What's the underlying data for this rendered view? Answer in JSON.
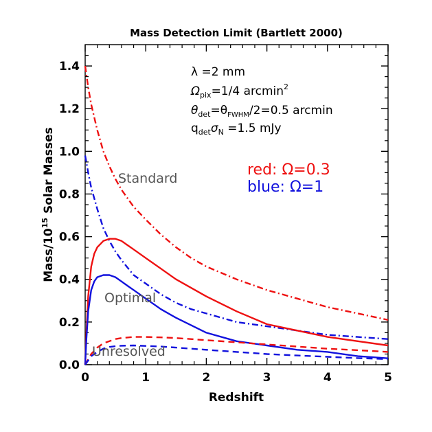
{
  "chart_data": {
    "type": "line",
    "title": "Mass Detection Limit (Bartlett 2000)",
    "xlabel": "Redshift",
    "ylabel": "Mass/10^15 Solar Masses",
    "xlim": [
      0,
      5
    ],
    "ylim": [
      0,
      1.5
    ],
    "x_ticks": [
      "0",
      "1",
      "2",
      "3",
      "4",
      "5"
    ],
    "y_ticks": [
      "0.0",
      "0.2",
      "0.4",
      "0.6",
      "0.8",
      "1.0",
      "1.2",
      "1.4"
    ],
    "grid": false,
    "parameters": {
      "lambda": "λ =2 mm",
      "omega_pix": "Ω",
      "omega_pix_sub": "pix",
      "omega_pix_val": "=1/4 arcmin",
      "omega_pix_sup": "2",
      "theta_1": "θ",
      "theta_1_sub": "det",
      "theta_2": "=θ",
      "theta_2_sub": "FWHM",
      "theta_rest": "/2=0.5 arcmin",
      "q": "q",
      "q_sub": "det",
      "sigma": "σ",
      "sigma_sub": "N",
      "q_rest": " =1.5 mJy"
    },
    "legend": {
      "red": "red:  Ω=0.3",
      "blue": "blue: Ω=1"
    },
    "annotations": {
      "standard": "Standard",
      "optimal": "Optimal",
      "unresolved": "Unresolved"
    },
    "colors": {
      "red": "#ee1111",
      "blue": "#1111dd"
    },
    "series": [
      {
        "key": "standard-red",
        "color": "red",
        "style": "dashdot",
        "x": [
          0.0,
          0.05,
          0.1,
          0.2,
          0.3,
          0.4,
          0.5,
          0.6,
          0.8,
          1.0,
          1.25,
          1.5,
          1.75,
          2.0,
          2.5,
          3.0,
          3.5,
          4.0,
          4.5,
          5.0
        ],
        "y": [
          1.4,
          1.3,
          1.22,
          1.1,
          1.0,
          0.93,
          0.87,
          0.82,
          0.74,
          0.68,
          0.61,
          0.55,
          0.5,
          0.46,
          0.4,
          0.35,
          0.31,
          0.27,
          0.24,
          0.21
        ]
      },
      {
        "key": "standard-blue",
        "color": "blue",
        "style": "dashdot",
        "x": [
          0.0,
          0.05,
          0.1,
          0.2,
          0.3,
          0.4,
          0.5,
          0.6,
          0.8,
          1.0,
          1.25,
          1.5,
          1.75,
          2.0,
          2.5,
          3.0,
          3.5,
          4.0,
          4.5,
          5.0
        ],
        "y": [
          0.98,
          0.9,
          0.83,
          0.73,
          0.64,
          0.58,
          0.53,
          0.49,
          0.42,
          0.38,
          0.33,
          0.29,
          0.26,
          0.24,
          0.2,
          0.18,
          0.16,
          0.14,
          0.13,
          0.12
        ]
      },
      {
        "key": "optimal-red",
        "color": "red",
        "style": "solid",
        "x": [
          0.0,
          0.02,
          0.05,
          0.1,
          0.15,
          0.2,
          0.3,
          0.4,
          0.5,
          0.6,
          0.7,
          0.8,
          1.0,
          1.25,
          1.5,
          2.0,
          2.5,
          3.0,
          3.5,
          4.0,
          4.5,
          5.0
        ],
        "y": [
          0.0,
          0.15,
          0.32,
          0.46,
          0.52,
          0.55,
          0.58,
          0.59,
          0.59,
          0.58,
          0.56,
          0.54,
          0.5,
          0.45,
          0.4,
          0.32,
          0.25,
          0.19,
          0.16,
          0.13,
          0.11,
          0.09
        ]
      },
      {
        "key": "optimal-blue",
        "color": "blue",
        "style": "solid",
        "x": [
          0.0,
          0.02,
          0.05,
          0.1,
          0.15,
          0.2,
          0.3,
          0.4,
          0.5,
          0.6,
          0.7,
          0.8,
          1.0,
          1.25,
          1.5,
          2.0,
          2.5,
          3.0,
          3.5,
          4.0,
          4.5,
          5.0
        ],
        "y": [
          0.0,
          0.12,
          0.25,
          0.35,
          0.39,
          0.41,
          0.42,
          0.42,
          0.41,
          0.39,
          0.37,
          0.35,
          0.31,
          0.26,
          0.22,
          0.15,
          0.11,
          0.09,
          0.07,
          0.06,
          0.04,
          0.03
        ]
      },
      {
        "key": "unresolved-red",
        "color": "red",
        "style": "dashed",
        "x": [
          0.0,
          0.1,
          0.2,
          0.3,
          0.4,
          0.5,
          0.6,
          0.8,
          1.0,
          1.25,
          1.5,
          2.0,
          2.5,
          3.0,
          3.5,
          4.0,
          4.5,
          5.0
        ],
        "y": [
          0.0,
          0.05,
          0.08,
          0.1,
          0.11,
          0.12,
          0.125,
          0.13,
          0.13,
          0.128,
          0.125,
          0.115,
          0.105,
          0.095,
          0.085,
          0.075,
          0.068,
          0.06
        ]
      },
      {
        "key": "unresolved-blue",
        "color": "blue",
        "style": "dashed",
        "x": [
          0.0,
          0.1,
          0.2,
          0.3,
          0.4,
          0.5,
          0.6,
          0.8,
          1.0,
          1.25,
          1.5,
          2.0,
          2.5,
          3.0,
          3.5,
          4.0,
          4.5,
          5.0
        ],
        "y": [
          0.0,
          0.04,
          0.06,
          0.075,
          0.083,
          0.087,
          0.089,
          0.09,
          0.088,
          0.085,
          0.08,
          0.07,
          0.06,
          0.05,
          0.043,
          0.037,
          0.031,
          0.026
        ]
      }
    ]
  }
}
